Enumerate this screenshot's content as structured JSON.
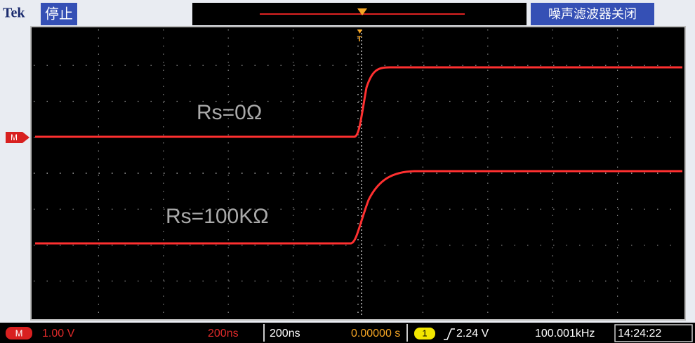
{
  "header": {
    "brand": "Tek",
    "status": "停止",
    "noise_filter": "噪声滤波器关闭"
  },
  "markers": {
    "trigger": "T",
    "channel_ref": "M"
  },
  "annotations": [
    "Rs=0Ω",
    "Rs=100KΩ"
  ],
  "status_bar": {
    "channel": "M",
    "volts_per_div": "1.00 V",
    "math_time": "200ns",
    "time_per_div": "200ns",
    "position": "0.00000 s",
    "trigger_channel": "1",
    "trigger_level": "2.24 V",
    "frequency": "100.001kHz",
    "clock": "14:24:22"
  }
}
